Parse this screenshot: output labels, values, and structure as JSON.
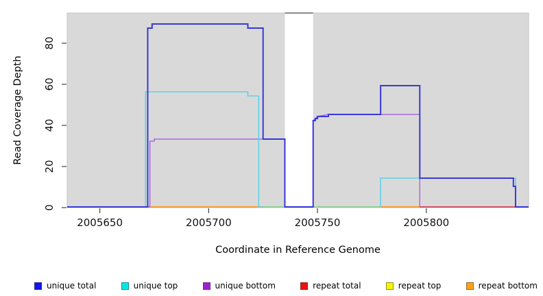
{
  "chart_data": {
    "type": "line",
    "subtype": "step",
    "title": "",
    "xlabel": "Coordinate in Reference Genome",
    "ylabel": "Read Coverage Depth",
    "x_ticks": [
      2005650,
      2005700,
      2005750,
      2005800
    ],
    "y_ticks": [
      0,
      20,
      40,
      60,
      80
    ],
    "x_range": [
      2005635,
      2005847
    ],
    "y_range": [
      0,
      94
    ],
    "grid": false,
    "legend_position": "bottom",
    "background": {
      "panel_color": "#d9d9d9",
      "panel_border_color": "#c3c3c3",
      "page_color": "#ffffff"
    },
    "gap_region": {
      "x_start": 2005735,
      "x_end": 2005748,
      "color": "#ffffff",
      "top_cap_color": "#8a8a8a"
    },
    "series": [
      {
        "name": "unique-total",
        "label": "unique total",
        "legend_color": "#1414EE",
        "line_color": "#3838D8",
        "line_width": 2,
        "draw_index": 6,
        "points": [
          [
            2005635,
            0
          ],
          [
            2005672,
            0
          ],
          [
            2005672,
            87
          ],
          [
            2005674,
            87
          ],
          [
            2005674,
            89
          ],
          [
            2005718,
            89
          ],
          [
            2005718,
            87
          ],
          [
            2005725,
            87
          ],
          [
            2005725,
            33
          ],
          [
            2005735,
            33
          ],
          [
            2005735,
            0
          ],
          [
            2005748,
            0
          ],
          [
            2005748,
            42
          ],
          [
            2005749,
            42
          ],
          [
            2005749,
            43
          ],
          [
            2005750,
            43
          ],
          [
            2005750,
            44
          ],
          [
            2005755,
            44
          ],
          [
            2005755,
            45
          ],
          [
            2005779,
            45
          ],
          [
            2005779,
            59
          ],
          [
            2005797,
            59
          ],
          [
            2005797,
            14
          ],
          [
            2005840,
            14
          ],
          [
            2005840,
            10
          ],
          [
            2005841,
            10
          ],
          [
            2005841,
            0
          ],
          [
            2005847,
            0
          ]
        ]
      },
      {
        "name": "unique-top",
        "label": "unique top",
        "legend_color": "#00E8E8",
        "line_color": "#5ED2E6",
        "line_width": 1.6,
        "draw_index": 4,
        "points": [
          [
            2005635,
            0
          ],
          [
            2005671,
            0
          ],
          [
            2005671,
            56
          ],
          [
            2005718,
            56
          ],
          [
            2005718,
            54
          ],
          [
            2005723,
            54
          ],
          [
            2005723,
            0
          ],
          [
            2005779,
            0
          ],
          [
            2005779,
            14
          ],
          [
            2005841,
            14
          ],
          [
            2005841,
            0
          ],
          [
            2005847,
            0
          ]
        ]
      },
      {
        "name": "unique-bottom",
        "label": "unique bottom",
        "legend_color": "#A21FD1",
        "line_color": "#AB6BDB",
        "line_width": 1.5,
        "draw_index": 3,
        "points": [
          [
            2005635,
            0
          ],
          [
            2005673,
            0
          ],
          [
            2005673,
            32
          ],
          [
            2005675,
            32
          ],
          [
            2005675,
            33
          ],
          [
            2005735,
            33
          ],
          [
            2005735,
            0
          ],
          [
            2005748,
            0
          ],
          [
            2005748,
            42
          ],
          [
            2005750,
            44
          ],
          [
            2005755,
            45
          ],
          [
            2005797,
            45
          ],
          [
            2005797,
            0
          ],
          [
            2005847,
            0
          ]
        ]
      },
      {
        "name": "repeat-total",
        "label": "repeat total",
        "legend_color": "#EE1111",
        "line_color": "#D34F68",
        "line_width": 1.6,
        "draw_index": 1,
        "points": [
          [
            2005635,
            0
          ],
          [
            2005847,
            0
          ]
        ]
      },
      {
        "name": "repeat-top",
        "label": "repeat top",
        "legend_color": "#F5F500",
        "line_color": "#E8E855",
        "line_width": 1.5,
        "draw_index": 0,
        "points": [
          [
            2005635,
            0
          ],
          [
            2005847,
            0
          ]
        ]
      },
      {
        "name": "repeat-bottom",
        "label": "repeat bottom",
        "legend_color": "#FFA217",
        "line_color": "#FF9C1E",
        "line_width": 1.8,
        "draw_index": 2,
        "points": [
          [
            2005635,
            0
          ],
          [
            2005847,
            0
          ]
        ]
      }
    ],
    "overlap_segments": [
      {
        "color": "#90CE97",
        "from": 2005725,
        "to": 2005735,
        "value": 0
      },
      {
        "color": "#90CE97",
        "from": 2005748,
        "to": 2005779,
        "value": 0
      },
      {
        "color": "#D34F68",
        "from": 2005797,
        "to": 2005841,
        "value": 0
      }
    ]
  }
}
